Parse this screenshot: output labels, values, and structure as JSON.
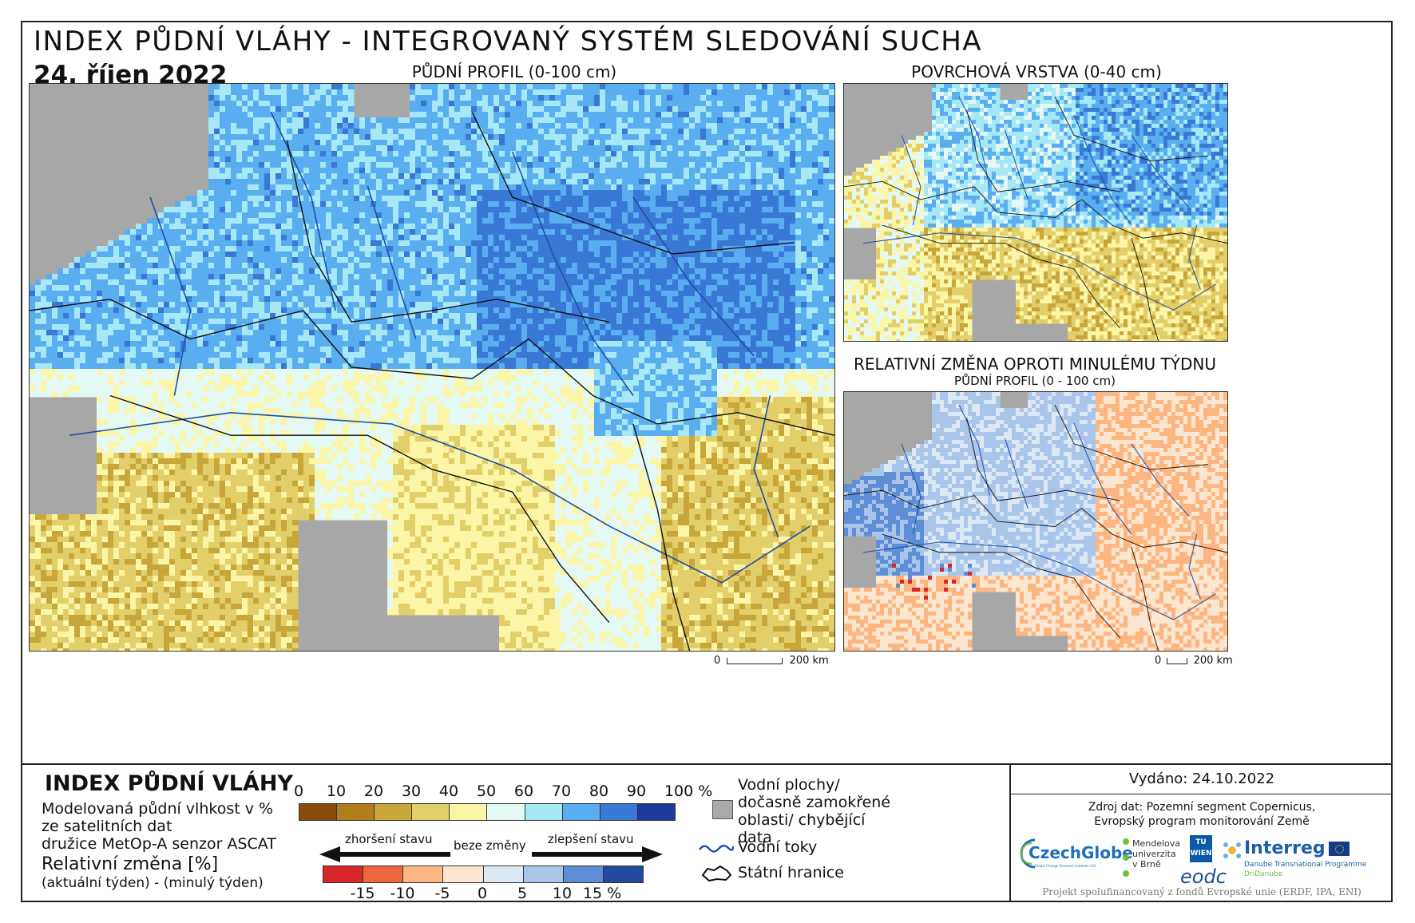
{
  "header": {
    "title": "INDEX PŮDNÍ VLÁHY - INTEGROVANÝ SYSTÉM SLEDOVÁNÍ SUCHA",
    "date": "24. říjen 2022"
  },
  "maps": {
    "main": {
      "label": "PŮDNÍ PROFIL (0-100 cm)"
    },
    "surface": {
      "label": "POVRCHOVÁ VRSTVA (0-40 cm)"
    },
    "change": {
      "label": "RELATIVNÍ ZMĚNA OPROTI MINULÉMU TÝDNU",
      "sublabel": "PŮDNÍ PROFIL (0 - 100 cm)"
    }
  },
  "scalebar": {
    "start": "0",
    "end": "200 km"
  },
  "legend": {
    "title": "INDEX PŮDNÍ VLÁHY",
    "desc_lines": [
      "Modelovaná půdní vlhkost v %",
      "ze satelitních dat",
      "družice MetOp-A senzor ASCAT"
    ],
    "change_title": "Relativní změna [%]",
    "change_desc": "(aktuální týden) - (minulý týden)",
    "index_ticks": [
      "0",
      "10",
      "20",
      "30",
      "40",
      "50",
      "60",
      "70",
      "80",
      "90",
      "100 %"
    ],
    "index_colors": [
      "#8a4c0c",
      "#b07e1c",
      "#c9a63a",
      "#e3cf6a",
      "#fbf5a8",
      "#e4f8f4",
      "#a7e8f7",
      "#5aaef0",
      "#3a78d6",
      "#1d3a9c"
    ],
    "change_ticks": [
      "-15",
      "-10",
      "-5",
      "0",
      "5",
      "10",
      "15 %"
    ],
    "change_colors": [
      "#d7272a",
      "#f0653e",
      "#fbb682",
      "#fde6cf",
      "#dce8f4",
      "#a9c6ea",
      "#5e8fd6",
      "#204a9e"
    ],
    "worse": "zhoršení stavu",
    "nochange": "beze změny",
    "better": "zlepšení stavu"
  },
  "key": {
    "water_areas": "Vodní plochy/ dočasně zamokřené oblasti/ chybějící data",
    "rivers": "Vodní toky",
    "borders": "Státní hranice"
  },
  "info": {
    "issued": "Vydáno: 24.10.2022",
    "source_line1": "Zdroj dat: Pozemní segment Copernicus,",
    "source_line2": "Evropský program monitorování Země",
    "logo_czechglobe": "CzechGlobe",
    "logo_czechglobe_sub": "Global Change Research Institute CAS",
    "logo_mendel": "Mendelova univerzita v Brně",
    "logo_tu": "TU WIEN",
    "logo_eodc": "eodc",
    "logo_interreg": "Interreg",
    "logo_interreg_sub1": "Danube Transnational Programme",
    "logo_interreg_sub2": "DriDanube",
    "footer": "Projekt spolufinancovaný z fondů Evropské unie (ERDF, IPA, ENI)"
  }
}
